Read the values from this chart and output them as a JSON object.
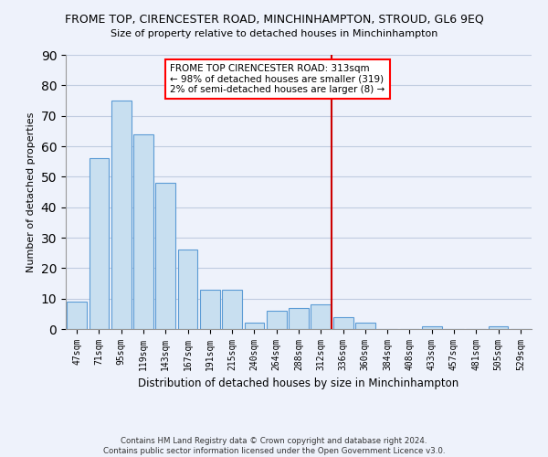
{
  "title": "FROME TOP, CIRENCESTER ROAD, MINCHINHAMPTON, STROUD, GL6 9EQ",
  "subtitle": "Size of property relative to detached houses in Minchinhampton",
  "xlabel": "Distribution of detached houses by size in Minchinhampton",
  "ylabel": "Number of detached properties",
  "bar_labels": [
    "47sqm",
    "71sqm",
    "95sqm",
    "119sqm",
    "143sqm",
    "167sqm",
    "191sqm",
    "215sqm",
    "240sqm",
    "264sqm",
    "288sqm",
    "312sqm",
    "336sqm",
    "360sqm",
    "384sqm",
    "408sqm",
    "433sqm",
    "457sqm",
    "481sqm",
    "505sqm",
    "529sqm"
  ],
  "bar_values": [
    9,
    56,
    75,
    64,
    48,
    26,
    13,
    13,
    2,
    6,
    7,
    8,
    4,
    2,
    0,
    0,
    1,
    0,
    0,
    1,
    0
  ],
  "bar_color": "#c8dff0",
  "bar_edge_color": "#5b9bd5",
  "ylim": [
    0,
    90
  ],
  "yticks": [
    0,
    10,
    20,
    30,
    40,
    50,
    60,
    70,
    80,
    90
  ],
  "vline_color": "#cc0000",
  "annotation_title": "FROME TOP CIRENCESTER ROAD: 313sqm",
  "annotation_line1": "← 98% of detached houses are smaller (319)",
  "annotation_line2": "2% of semi-detached houses are larger (8) →",
  "footer_line1": "Contains HM Land Registry data © Crown copyright and database right 2024.",
  "footer_line2": "Contains public sector information licensed under the Open Government Licence v3.0.",
  "background_color": "#eef2fb",
  "plot_background": "#eef2fb",
  "grid_color": "#c0cce0"
}
